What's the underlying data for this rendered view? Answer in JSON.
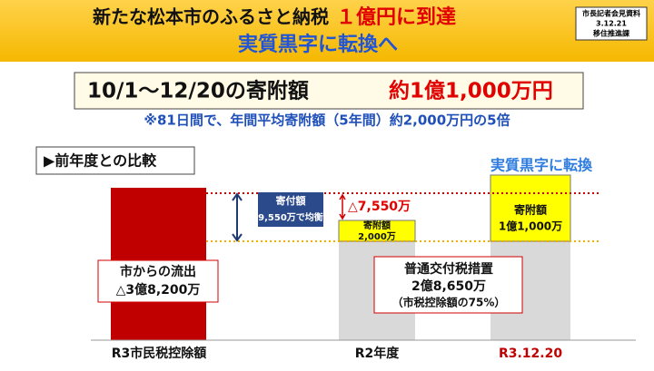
{
  "header": {
    "title_black": "新たな松本市のふるさと納税",
    "title_red": "１億円に到達",
    "subtitle": "実質黒字に転換へ",
    "stamp": [
      "市長記者会見資料",
      "3.12.21",
      "移住推進課"
    ]
  },
  "headline": {
    "period": "10/1～12/20の寄附額",
    "amount": "約1億1,000万円"
  },
  "note": "※81日間で、年間平均寄附額（5年間）約2,000万円の5倍",
  "section_label": "▶前年度との比較",
  "diagram": {
    "turnaround_label": "実質黒字に転換",
    "outflow": {
      "label": "市からの流出",
      "amount": "△3億8,200万"
    },
    "balance": {
      "label": "寄付額",
      "amount": "9,550万で均衡"
    },
    "gap": "△7,550万",
    "r2_donation": {
      "label": "寄附額",
      "amount": "2,000万"
    },
    "r3_donation": {
      "label": "寄附額",
      "amount": "1億1,000万"
    },
    "tax_measure": {
      "label": "普通交付税措置",
      "amount": "2億8,650万",
      "note": "（市税控除額の75%）"
    },
    "columns": [
      "R3市民税控除額",
      "R2年度",
      "R3.12.20"
    ]
  }
}
